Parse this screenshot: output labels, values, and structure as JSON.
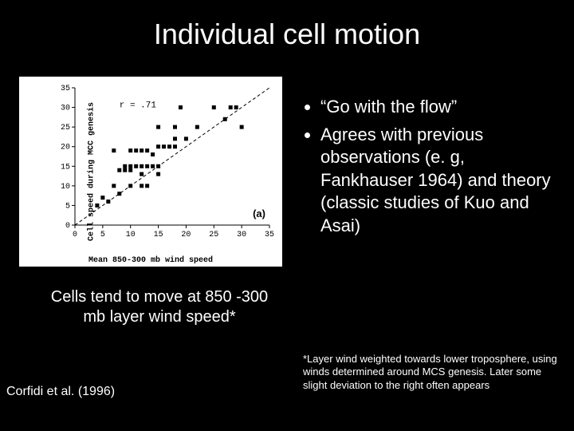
{
  "title": "Individual cell motion",
  "bullets": [
    "“Go with the flow”",
    "Agrees with previous observations (e. g, Fankhauser 1964) and theory (classic studies of Kuo and Asai)"
  ],
  "caption": "Cells tend to move at 850 -300 mb layer wind speed*",
  "citation": "Corfidi et al. (1996)",
  "footnote": "*Layer wind weighted towards lower troposphere, using winds determined around MCS genesis. Later some slight deviation to the right often appears",
  "chart": {
    "type": "scatter",
    "xlabel": "Mean 850-300 mb wind speed",
    "ylabel": "Cell speed during MCC genesis",
    "r_label": "r = .71",
    "panel_label": "(a)",
    "xlim": [
      0,
      35
    ],
    "ylim": [
      0,
      35
    ],
    "xticks": [
      0,
      5,
      10,
      15,
      20,
      25,
      30,
      35
    ],
    "yticks": [
      0,
      5,
      10,
      15,
      20,
      25,
      30,
      35
    ],
    "tick_fontsize": 10,
    "tick_fontfamily": "Courier New, monospace",
    "marker": "square",
    "marker_size": 5,
    "marker_color": "#000000",
    "background_color": "#ffffff",
    "axis_color": "#000000",
    "dashed_line": {
      "from": [
        0,
        0
      ],
      "to": [
        35,
        35
      ],
      "dash": "4,3",
      "color": "#000000",
      "width": 1
    },
    "points": [
      [
        4,
        5
      ],
      [
        5,
        7
      ],
      [
        6,
        6
      ],
      [
        7,
        10
      ],
      [
        8,
        8
      ],
      [
        8,
        14
      ],
      [
        9,
        14
      ],
      [
        9,
        15
      ],
      [
        10,
        10
      ],
      [
        10,
        14
      ],
      [
        10,
        15
      ],
      [
        10,
        19
      ],
      [
        11,
        15
      ],
      [
        11,
        19
      ],
      [
        12,
        10
      ],
      [
        12,
        13
      ],
      [
        12,
        15
      ],
      [
        12,
        19
      ],
      [
        13,
        10
      ],
      [
        13,
        15
      ],
      [
        13,
        19
      ],
      [
        14,
        15
      ],
      [
        14,
        18
      ],
      [
        15,
        13
      ],
      [
        15,
        15
      ],
      [
        15,
        20
      ],
      [
        15,
        25
      ],
      [
        16,
        20
      ],
      [
        17,
        20
      ],
      [
        18,
        20
      ],
      [
        18,
        22
      ],
      [
        18,
        25
      ],
      [
        20,
        22
      ],
      [
        22,
        25
      ],
      [
        25,
        30
      ],
      [
        27,
        27
      ],
      [
        28,
        30
      ],
      [
        29,
        30
      ],
      [
        30,
        25
      ],
      [
        19,
        30
      ],
      [
        7,
        19
      ]
    ]
  },
  "colors": {
    "slide_bg": "#000000",
    "text": "#ffffff"
  }
}
